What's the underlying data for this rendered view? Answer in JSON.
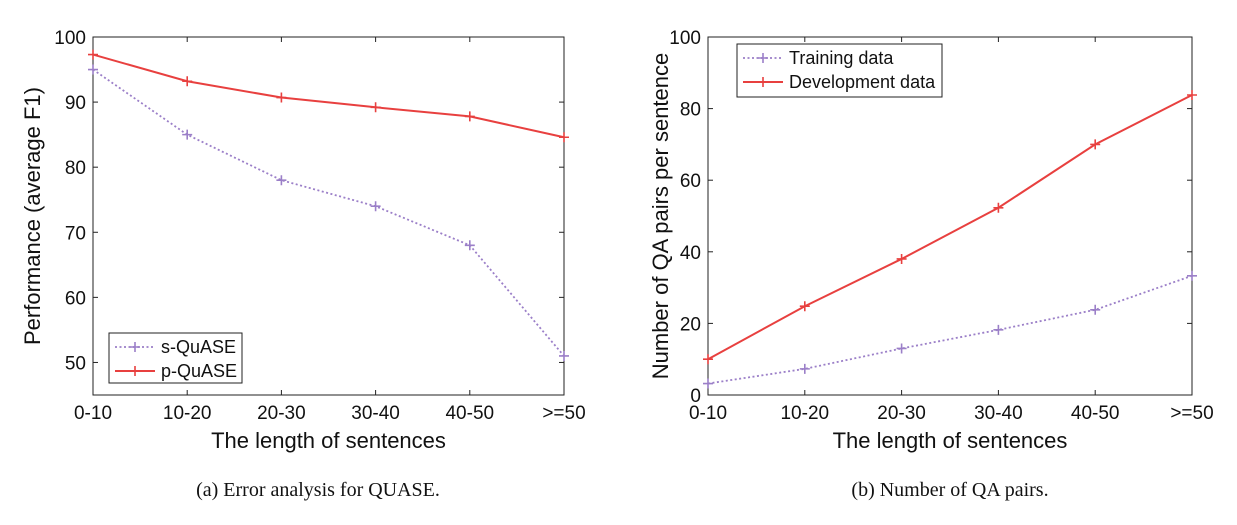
{
  "colors": {
    "s_series": "#9b7fc8",
    "p_series": "#e8403f",
    "axis": "#222222"
  },
  "chart_data": [
    {
      "type": "line",
      "caption": "(a)  Error analysis for QUASE.",
      "xlabel": "The length of sentences",
      "ylabel": "Performance (average F1)",
      "categories": [
        "0-10",
        "10-20",
        "20-30",
        "30-40",
        "40-50",
        ">=50"
      ],
      "ylim": [
        45,
        100
      ],
      "yticks": [
        50,
        60,
        70,
        80,
        90,
        100
      ],
      "grid": false,
      "legend_position": "bottom-left",
      "series": [
        {
          "name": "s-QuASE",
          "style": "dotted",
          "color": "#9b7fc8",
          "values": [
            95,
            85,
            78,
            74,
            68,
            51
          ]
        },
        {
          "name": "p-QuASE",
          "style": "solid",
          "color": "#e8403f",
          "values": [
            97.3,
            93.2,
            90.7,
            89.2,
            87.8,
            84.6
          ]
        }
      ]
    },
    {
      "type": "line",
      "caption": "(b)  Number of QA pairs.",
      "xlabel": "The length of sentences",
      "ylabel": "Number of QA pairs per sentence",
      "categories": [
        "0-10",
        "10-20",
        "20-30",
        "30-40",
        "40-50",
        ">=50"
      ],
      "ylim": [
        0,
        100
      ],
      "yticks": [
        0,
        20,
        40,
        60,
        80,
        100
      ],
      "grid": false,
      "legend_position": "top-left",
      "series": [
        {
          "name": "Training data",
          "style": "dotted",
          "color": "#9b7fc8",
          "values": [
            3.2,
            7.3,
            13,
            18.2,
            23.8,
            33.3
          ]
        },
        {
          "name": "Development data",
          "style": "solid",
          "color": "#e8403f",
          "values": [
            10,
            24.8,
            38,
            52.3,
            70,
            83.8
          ]
        }
      ]
    }
  ]
}
